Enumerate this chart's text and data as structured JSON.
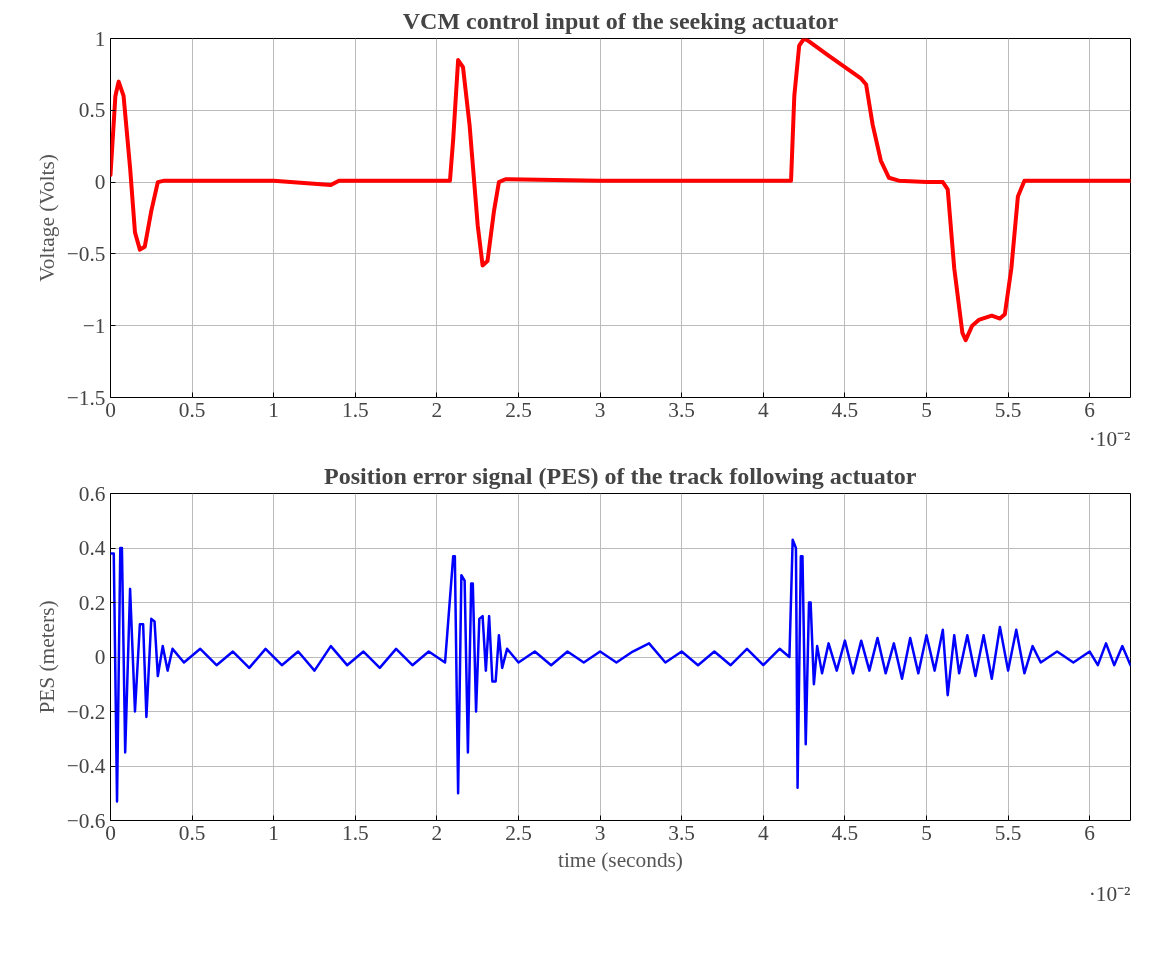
{
  "chart_data": [
    {
      "type": "line",
      "title": "VCM control input of the seeking actuator",
      "ylabel": "Voltage (Volts)",
      "annotations": [
        "·10⁻²"
      ],
      "grid": true,
      "xlim": [
        0,
        6.25
      ],
      "ylim": [
        -1.5,
        1
      ],
      "xticks": [
        0,
        0.5,
        1,
        1.5,
        2,
        2.5,
        3,
        3.5,
        4,
        4.5,
        5,
        5.5,
        6
      ],
      "yticks": [
        {
          "value": -1.5,
          "label": "−1.5"
        },
        {
          "value": -1,
          "label": "−1"
        },
        {
          "value": -0.5,
          "label": "−0.5"
        },
        0,
        0.5,
        1
      ],
      "series": [
        {
          "color": "#ff0000",
          "x": [
            0,
            0.03,
            0.05,
            0.08,
            0.12,
            0.15,
            0.18,
            0.21,
            0.25,
            0.29,
            0.33,
            0.6,
            1,
            1.35,
            1.4,
            2,
            2.08,
            2.1,
            2.13,
            2.16,
            2.2,
            2.25,
            2.28,
            2.31,
            2.35,
            2.38,
            2.42,
            3,
            4,
            4.17,
            4.19,
            4.22,
            4.25,
            4.28,
            4.4,
            4.5,
            4.6,
            4.63,
            4.67,
            4.72,
            4.77,
            4.83,
            5,
            5.1,
            5.13,
            5.17,
            5.22,
            5.24,
            5.28,
            5.32,
            5.4,
            5.45,
            5.48,
            5.52,
            5.56,
            5.6,
            6,
            6.25
          ],
          "values": [
            0.05,
            0.6,
            0.7,
            0.6,
            0.1,
            -0.35,
            -0.47,
            -0.45,
            -0.2,
            0,
            0.01,
            0.01,
            0.01,
            -0.02,
            0.01,
            0.01,
            0.01,
            0.3,
            0.85,
            0.8,
            0.4,
            -0.3,
            -0.58,
            -0.55,
            -0.2,
            0,
            0.02,
            0.01,
            0.01,
            0.01,
            0.6,
            0.95,
            1.0,
            0.98,
            0.88,
            0.8,
            0.72,
            0.68,
            0.4,
            0.15,
            0.03,
            0.01,
            0,
            0,
            -0.05,
            -0.6,
            -1.05,
            -1.1,
            -1.0,
            -0.96,
            -0.93,
            -0.95,
            -0.92,
            -0.6,
            -0.1,
            0.01,
            0.01,
            0.01
          ]
        }
      ]
    },
    {
      "type": "line",
      "title": "Position error signal (PES) of the track following actuator",
      "xlabel": "time (seconds)",
      "ylabel": "PES (meters)",
      "annotations": [
        "·10⁻²"
      ],
      "grid": true,
      "xlim": [
        0,
        6.25
      ],
      "ylim": [
        -0.6,
        0.6
      ],
      "xticks": [
        0,
        0.5,
        1,
        1.5,
        2,
        2.5,
        3,
        3.5,
        4,
        4.5,
        5,
        5.5,
        6
      ],
      "yticks": [
        {
          "value": -0.6,
          "label": "−0.6"
        },
        {
          "value": -0.4,
          "label": "−0.4"
        },
        {
          "value": -0.2,
          "label": "−0.2"
        },
        0,
        0.2,
        0.4,
        0.6
      ],
      "series": [
        {
          "color": "#0000ff",
          "x": [
            0,
            0.02,
            0.04,
            0.06,
            0.07,
            0.09,
            0.12,
            0.15,
            0.18,
            0.2,
            0.22,
            0.25,
            0.27,
            0.29,
            0.32,
            0.35,
            0.38,
            0.45,
            0.55,
            0.65,
            0.75,
            0.85,
            0.95,
            1.05,
            1.15,
            1.25,
            1.35,
            1.45,
            1.55,
            1.65,
            1.75,
            1.85,
            1.95,
            2.05,
            2.1,
            2.11,
            2.13,
            2.15,
            2.17,
            2.19,
            2.21,
            2.22,
            2.24,
            2.26,
            2.28,
            2.3,
            2.32,
            2.34,
            2.36,
            2.38,
            2.4,
            2.43,
            2.5,
            2.6,
            2.7,
            2.8,
            2.9,
            3,
            3.1,
            3.2,
            3.3,
            3.4,
            3.5,
            3.6,
            3.7,
            3.8,
            3.9,
            4,
            4.1,
            4.16,
            4.18,
            4.2,
            4.21,
            4.23,
            4.24,
            4.26,
            4.28,
            4.29,
            4.31,
            4.33,
            4.36,
            4.4,
            4.45,
            4.5,
            4.55,
            4.6,
            4.65,
            4.7,
            4.75,
            4.8,
            4.85,
            4.9,
            4.95,
            5,
            5.05,
            5.1,
            5.13,
            5.17,
            5.2,
            5.25,
            5.3,
            5.35,
            5.4,
            5.45,
            5.5,
            5.55,
            5.6,
            5.65,
            5.7,
            5.8,
            5.9,
            6,
            6.05,
            6.1,
            6.15,
            6.2,
            6.25
          ],
          "values": [
            0.38,
            0.38,
            -0.53,
            0.4,
            0.4,
            -0.35,
            0.25,
            -0.2,
            0.12,
            0.12,
            -0.22,
            0.14,
            0.13,
            -0.07,
            0.04,
            -0.05,
            0.03,
            -0.02,
            0.03,
            -0.03,
            0.02,
            -0.04,
            0.03,
            -0.03,
            0.02,
            -0.05,
            0.04,
            -0.03,
            0.02,
            -0.04,
            0.03,
            -0.03,
            0.02,
            -0.02,
            0.37,
            0.37,
            -0.5,
            0.3,
            0.28,
            -0.35,
            0.27,
            0.27,
            -0.2,
            0.14,
            0.15,
            -0.05,
            0.15,
            -0.09,
            -0.09,
            0.08,
            -0.04,
            0.03,
            -0.02,
            0.02,
            -0.03,
            0.02,
            -0.02,
            0.02,
            -0.02,
            0.02,
            0.05,
            -0.02,
            0.02,
            -0.03,
            0.02,
            -0.03,
            0.03,
            -0.03,
            0.03,
            0.0,
            0.43,
            0.4,
            -0.48,
            0.37,
            0.37,
            -0.32,
            0.2,
            0.2,
            -0.1,
            0.04,
            -0.06,
            0.05,
            -0.05,
            0.06,
            -0.06,
            0.06,
            -0.05,
            0.07,
            -0.06,
            0.05,
            -0.08,
            0.07,
            -0.06,
            0.08,
            -0.05,
            0.1,
            -0.14,
            0.08,
            -0.06,
            0.08,
            -0.07,
            0.08,
            -0.08,
            0.11,
            -0.05,
            0.1,
            -0.06,
            0.04,
            -0.02,
            0.02,
            -0.02,
            0.02,
            -0.03,
            0.05,
            -0.03,
            0.04,
            -0.03
          ]
        }
      ]
    }
  ]
}
